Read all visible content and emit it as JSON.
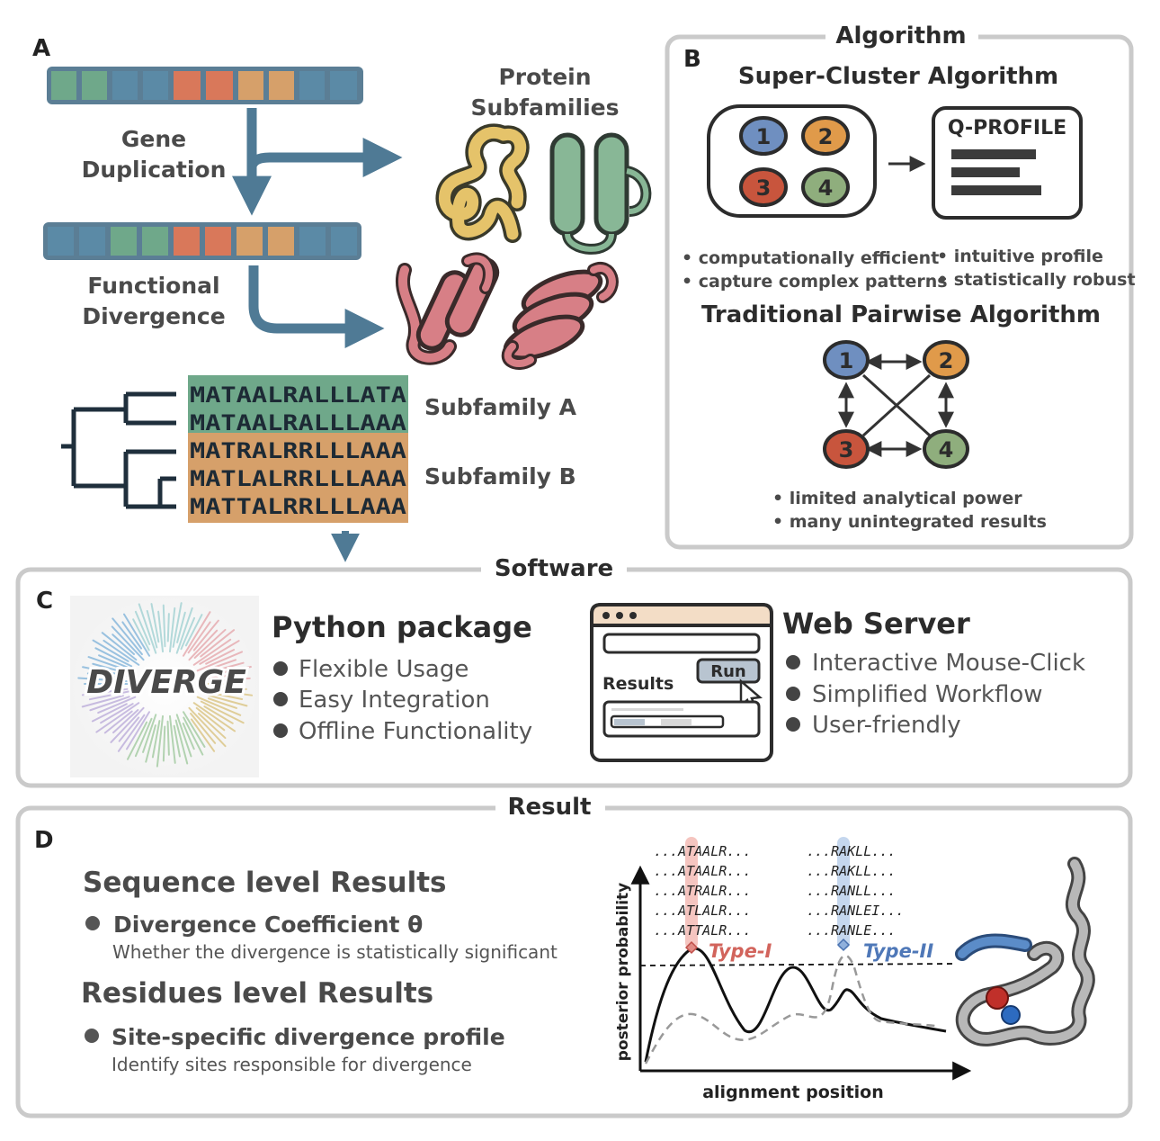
{
  "panel_a": {
    "letter": "A",
    "gene_duplication": [
      "Gene",
      "Duplication"
    ],
    "functional_divergence": [
      "Functional",
      "Divergence"
    ],
    "protein_subfamilies": [
      "Protein",
      "Subfamilies"
    ],
    "alignment": [
      {
        "seq": "MATAALRALLLATA",
        "group": "A"
      },
      {
        "seq": "MATAALRALLLAAA",
        "group": "A"
      },
      {
        "seq": "MATRALRRLLLAAA",
        "group": "B"
      },
      {
        "seq": "MATLALRRLLLAAA",
        "group": "B"
      },
      {
        "seq": "MATTALRRLLLAAA",
        "group": "B"
      }
    ],
    "subfamily_a": "Subfamily A",
    "subfamily_b": "Subfamily B"
  },
  "panel_b": {
    "letter": "B",
    "section_title": "Algorithm",
    "super_title": "Super-Cluster Algorithm",
    "qprofile": "Q-PROFILE",
    "nodes": [
      "1",
      "2",
      "3",
      "4"
    ],
    "super_bullets_left": [
      "• computationally efficient",
      "• capture complex patterns"
    ],
    "super_bullets_right": [
      "• intuitive profile",
      "• statistically robust"
    ],
    "pairwise_title": "Traditional Pairwise Algorithm",
    "pairwise_bullets": [
      "• limited analytical power",
      "• many unintegrated results"
    ]
  },
  "panel_c": {
    "letter": "C",
    "section_title": "Software",
    "logo_text": "DIVERGE",
    "python_title": "Python package",
    "python_items": [
      "Flexible Usage",
      "Easy Integration",
      "Offline Functionality"
    ],
    "web_title": "Web Server",
    "web_items": [
      "Interactive Mouse-Click",
      "Simplified Workflow",
      "User-friendly"
    ],
    "mock_results": "Results",
    "mock_run": "Run"
  },
  "panel_d": {
    "letter": "D",
    "section_title": "Result",
    "seq_title": "Sequence level Results",
    "seq_item": "Divergence Coefficient θ",
    "seq_desc": "Whether the divergence is statistically significant",
    "res_title": "Residues level Results",
    "res_item": "Site-specific divergence profile",
    "res_desc": "Identify sites responsible for divergence",
    "ylabel": "posterior probability",
    "xlabel": "alignment position",
    "type1": "Type-I",
    "type2": "Type-II",
    "type1_seqs": [
      "...ATAALR...",
      "...ATAALR...",
      "...ATRALR...",
      "...ATLALR...",
      "...ATTALR..."
    ],
    "type2_seqs": [
      "...RAKLL...",
      "...RAKLL...",
      "...RANLL...",
      "...RANLEI...",
      "...RANLE..."
    ]
  },
  "colors": {
    "green": "#6fa88a",
    "blue": "#5b8aa6",
    "orange": "#d9785a",
    "sand": "#d6a06a",
    "node1": "#6f8fc0",
    "node2": "#e09a4a",
    "node3": "#c8553d",
    "node4": "#8fae7d",
    "arrow": "#4f7a95",
    "panel_border": "#c8c8c8"
  }
}
